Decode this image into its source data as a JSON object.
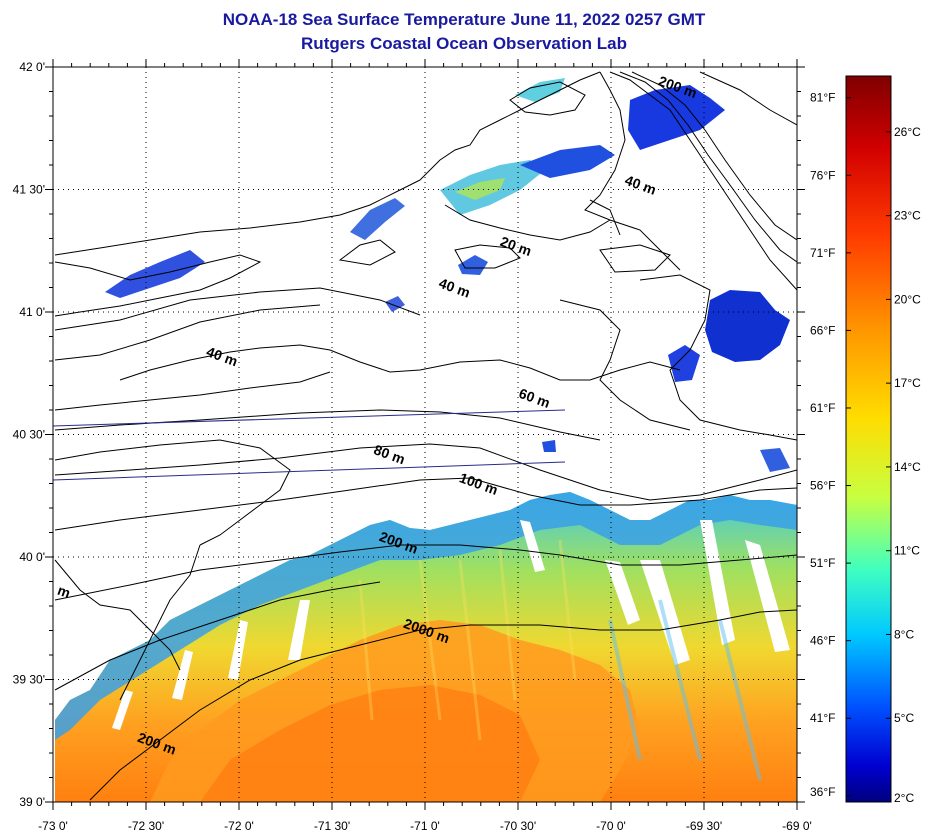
{
  "title": "NOAA-18 Sea Surface Temperature June 11, 2022 0257 GMT",
  "subtitle": "Rutgers Coastal Ocean Observation Lab",
  "map": {
    "lon_range": [
      -73.0,
      -69.0
    ],
    "lat_range": [
      39.0,
      42.0
    ],
    "lon_labels": [
      "-73 0'",
      "-72 30'",
      "-72 0'",
      "-71 30'",
      "-71 0'",
      "-70 30'",
      "-70 0'",
      "-69 30'",
      "-69 0'"
    ],
    "lat_labels": [
      "39 0'",
      "39 30'",
      "40 0'",
      "40 30'",
      "41 0'",
      "41 30'",
      "42 0'"
    ],
    "grid": "dotted",
    "contour_labels": [
      {
        "text": "200 m",
        "lon": -69.65,
        "lat": 41.9
      },
      {
        "text": "40 m",
        "lon": -69.85,
        "lat": 41.5
      },
      {
        "text": "20 m",
        "lon": -70.52,
        "lat": 41.25
      },
      {
        "text": "40 m",
        "lon": -70.85,
        "lat": 41.08
      },
      {
        "text": "40 m",
        "lon": -72.1,
        "lat": 40.8
      },
      {
        "text": "60 m",
        "lon": -70.42,
        "lat": 40.63
      },
      {
        "text": "80 m",
        "lon": -71.2,
        "lat": 40.4
      },
      {
        "text": "100 m",
        "lon": -70.72,
        "lat": 40.28
      },
      {
        "text": "200 m",
        "lon": -71.15,
        "lat": 40.04
      },
      {
        "text": "2000 m",
        "lon": -71.0,
        "lat": 39.68
      },
      {
        "text": "200 m",
        "lon": -72.45,
        "lat": 39.22
      },
      {
        "text": "m",
        "lon": -72.95,
        "lat": 39.84
      }
    ]
  },
  "colorbar": {
    "celsius_labels": [
      "2°C",
      "5°C",
      "8°C",
      "11°C",
      "14°C",
      "17°C",
      "20°C",
      "23°C",
      "26°C"
    ],
    "fahrenheit_labels": [
      "36°F",
      "41°F",
      "46°F",
      "51°F",
      "56°F",
      "61°F",
      "66°F",
      "71°F",
      "76°F",
      "81°F"
    ],
    "min_c": 2,
    "max_c": 28,
    "colors": [
      "#00007f",
      "#0000ff",
      "#007fff",
      "#00ffff",
      "#7fff7f",
      "#ffff00",
      "#ff7f00",
      "#ff0000",
      "#7f0000"
    ]
  },
  "colors": {
    "title": "#1a1aa0",
    "coast": "#000000",
    "track": "#2a2a8a"
  }
}
